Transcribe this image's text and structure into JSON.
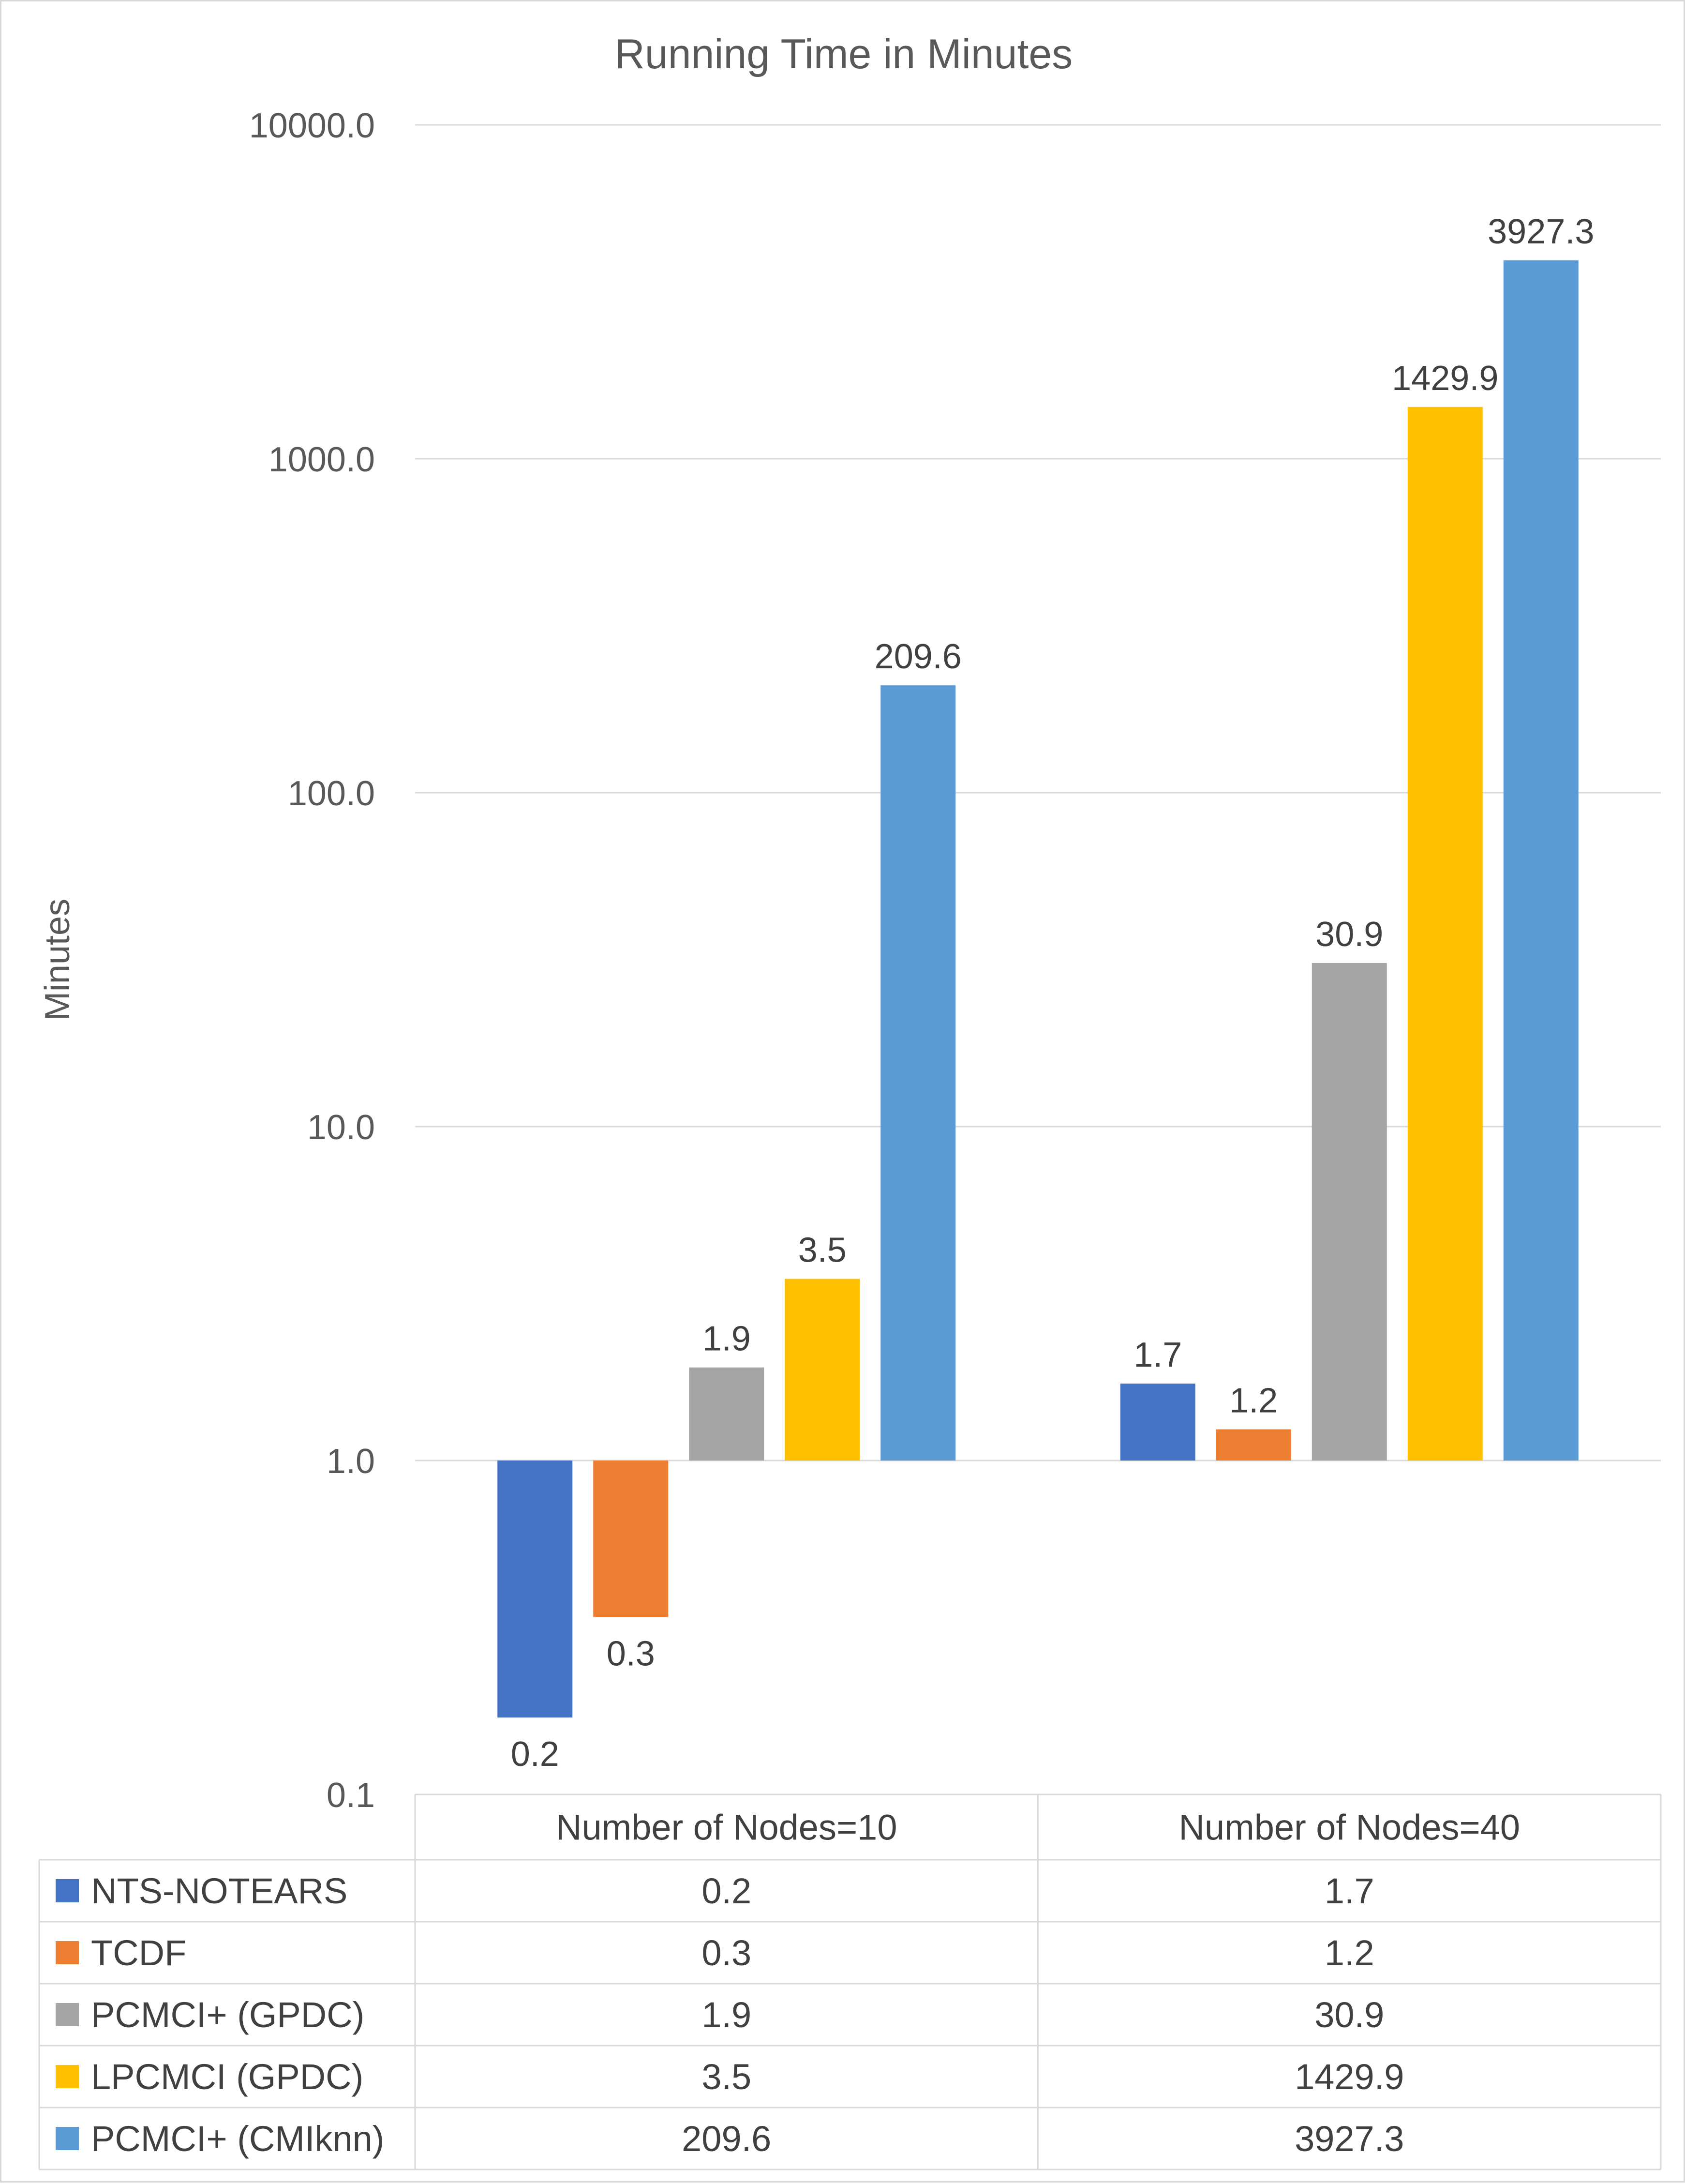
{
  "chart_data": {
    "type": "bar",
    "title": "Running Time in Minutes",
    "ylabel": "Minutes",
    "xlabel": "",
    "y_scale": "log",
    "ylim": [
      0.1,
      10000
    ],
    "baseline": 1.0,
    "y_ticks": [
      "0.1",
      "1.0",
      "10.0",
      "100.0",
      "1000.0",
      "10000.0"
    ],
    "categories": [
      "Number of Nodes=10",
      "Number of Nodes=40"
    ],
    "grid": true,
    "legend_placement": "data-table-below",
    "series": [
      {
        "name": "NTS-NOTEARS",
        "color": "#4472c4",
        "values": [
          0.17,
          1.7
        ],
        "labels": [
          "0.2",
          "1.7"
        ]
      },
      {
        "name": "TCDF",
        "color": "#ed7d31",
        "values": [
          0.34,
          1.24
        ],
        "labels": [
          "0.3",
          "1.2"
        ]
      },
      {
        "name": "PCMCI+ (GPDC)",
        "color": "#a5a5a5",
        "values": [
          1.9,
          30.9
        ],
        "labels": [
          "1.9",
          "30.9"
        ]
      },
      {
        "name": "LPCMCI (GPDC)",
        "color": "#ffc000",
        "values": [
          3.5,
          1429.9
        ],
        "labels": [
          "3.5",
          "1429.9"
        ]
      },
      {
        "name": "PCMCI+ (CMIknn)",
        "color": "#5b9bd5",
        "values": [
          209.6,
          3927.3
        ],
        "labels": [
          "209.6",
          "3927.3"
        ]
      }
    ]
  }
}
